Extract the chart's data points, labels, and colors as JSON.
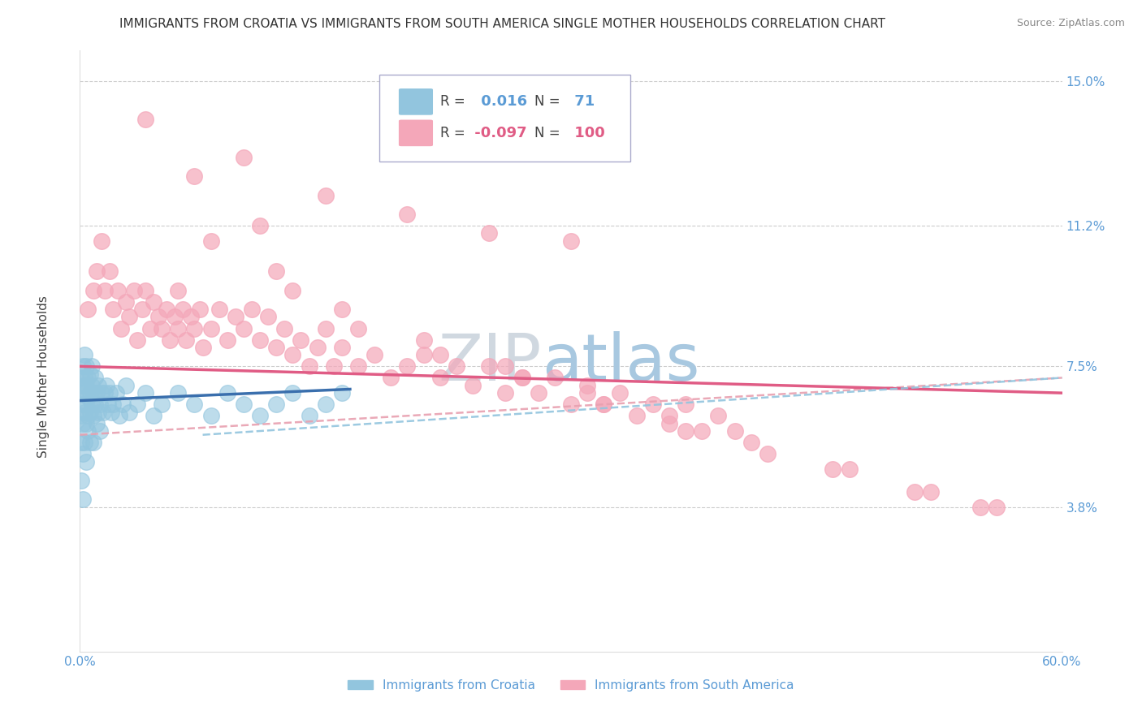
{
  "title": "IMMIGRANTS FROM CROATIA VS IMMIGRANTS FROM SOUTH AMERICA SINGLE MOTHER HOUSEHOLDS CORRELATION CHART",
  "source": "Source: ZipAtlas.com",
  "ylabel": "Single Mother Households",
  "croatia_R": 0.016,
  "croatia_N": 71,
  "south_america_R": -0.097,
  "south_america_N": 100,
  "blue_scatter_color": "#92c5de",
  "pink_scatter_color": "#f4a7b9",
  "blue_line_color": "#3a6fad",
  "pink_line_color": "#e05c85",
  "blue_dash_color": "#92c5de",
  "pink_dash_color": "#e8a0b0",
  "axis_color": "#5b9bd5",
  "watermark_color": "#ccdded",
  "background_color": "#ffffff",
  "grid_color": "#cccccc",
  "xlim": [
    0.0,
    0.6
  ],
  "ylim": [
    0.0,
    0.158
  ],
  "yticks": [
    0.0,
    0.038,
    0.075,
    0.112,
    0.15
  ],
  "ytick_labels": [
    "",
    "3.8%",
    "7.5%",
    "11.2%",
    "15.0%"
  ],
  "xticks": [
    0.0,
    0.1,
    0.2,
    0.3,
    0.4,
    0.5,
    0.6
  ],
  "xtick_labels": [
    "0.0%",
    "",
    "",
    "",
    "",
    "",
    "60.0%"
  ],
  "croatia_x": [
    0.001,
    0.001,
    0.001,
    0.001,
    0.001,
    0.002,
    0.002,
    0.002,
    0.002,
    0.002,
    0.002,
    0.003,
    0.003,
    0.003,
    0.003,
    0.003,
    0.004,
    0.004,
    0.004,
    0.004,
    0.004,
    0.005,
    0.005,
    0.005,
    0.005,
    0.006,
    0.006,
    0.006,
    0.006,
    0.007,
    0.007,
    0.007,
    0.008,
    0.008,
    0.008,
    0.009,
    0.009,
    0.01,
    0.01,
    0.011,
    0.011,
    0.012,
    0.012,
    0.013,
    0.014,
    0.015,
    0.016,
    0.017,
    0.018,
    0.019,
    0.02,
    0.022,
    0.024,
    0.026,
    0.028,
    0.03,
    0.035,
    0.04,
    0.045,
    0.05,
    0.06,
    0.07,
    0.08,
    0.09,
    0.1,
    0.11,
    0.12,
    0.13,
    0.14,
    0.15,
    0.16
  ],
  "croatia_y": [
    0.055,
    0.062,
    0.068,
    0.072,
    0.045,
    0.06,
    0.065,
    0.07,
    0.075,
    0.052,
    0.04,
    0.063,
    0.068,
    0.072,
    0.078,
    0.055,
    0.06,
    0.065,
    0.07,
    0.075,
    0.05,
    0.062,
    0.067,
    0.072,
    0.058,
    0.063,
    0.068,
    0.073,
    0.055,
    0.065,
    0.07,
    0.075,
    0.062,
    0.068,
    0.055,
    0.065,
    0.072,
    0.06,
    0.068,
    0.063,
    0.07,
    0.058,
    0.065,
    0.068,
    0.063,
    0.068,
    0.07,
    0.065,
    0.068,
    0.063,
    0.065,
    0.068,
    0.062,
    0.065,
    0.07,
    0.063,
    0.065,
    0.068,
    0.062,
    0.065,
    0.068,
    0.065,
    0.062,
    0.068,
    0.065,
    0.062,
    0.065,
    0.068,
    0.062,
    0.065,
    0.068
  ],
  "south_x": [
    0.005,
    0.008,
    0.01,
    0.013,
    0.015,
    0.018,
    0.02,
    0.023,
    0.025,
    0.028,
    0.03,
    0.033,
    0.035,
    0.038,
    0.04,
    0.043,
    0.045,
    0.048,
    0.05,
    0.053,
    0.055,
    0.058,
    0.06,
    0.063,
    0.065,
    0.068,
    0.07,
    0.073,
    0.075,
    0.08,
    0.085,
    0.09,
    0.095,
    0.1,
    0.105,
    0.11,
    0.115,
    0.12,
    0.125,
    0.13,
    0.135,
    0.14,
    0.145,
    0.15,
    0.155,
    0.16,
    0.17,
    0.18,
    0.19,
    0.2,
    0.21,
    0.22,
    0.23,
    0.24,
    0.25,
    0.26,
    0.27,
    0.28,
    0.29,
    0.3,
    0.31,
    0.32,
    0.33,
    0.34,
    0.35,
    0.36,
    0.37,
    0.38,
    0.39,
    0.4,
    0.15,
    0.2,
    0.25,
    0.3,
    0.1,
    0.12,
    0.08,
    0.06,
    0.13,
    0.17,
    0.22,
    0.27,
    0.32,
    0.37,
    0.42,
    0.47,
    0.52,
    0.56,
    0.04,
    0.07,
    0.11,
    0.16,
    0.21,
    0.26,
    0.31,
    0.36,
    0.41,
    0.46,
    0.51,
    0.55
  ],
  "south_y": [
    0.09,
    0.095,
    0.1,
    0.108,
    0.095,
    0.1,
    0.09,
    0.095,
    0.085,
    0.092,
    0.088,
    0.095,
    0.082,
    0.09,
    0.095,
    0.085,
    0.092,
    0.088,
    0.085,
    0.09,
    0.082,
    0.088,
    0.085,
    0.09,
    0.082,
    0.088,
    0.085,
    0.09,
    0.08,
    0.085,
    0.09,
    0.082,
    0.088,
    0.085,
    0.09,
    0.082,
    0.088,
    0.08,
    0.085,
    0.078,
    0.082,
    0.075,
    0.08,
    0.085,
    0.075,
    0.08,
    0.075,
    0.078,
    0.072,
    0.075,
    0.078,
    0.072,
    0.075,
    0.07,
    0.075,
    0.068,
    0.072,
    0.068,
    0.072,
    0.065,
    0.07,
    0.065,
    0.068,
    0.062,
    0.065,
    0.06,
    0.065,
    0.058,
    0.062,
    0.058,
    0.12,
    0.115,
    0.11,
    0.108,
    0.13,
    0.1,
    0.108,
    0.095,
    0.095,
    0.085,
    0.078,
    0.072,
    0.065,
    0.058,
    0.052,
    0.048,
    0.042,
    0.038,
    0.14,
    0.125,
    0.112,
    0.09,
    0.082,
    0.075,
    0.068,
    0.062,
    0.055,
    0.048,
    0.042,
    0.038
  ]
}
